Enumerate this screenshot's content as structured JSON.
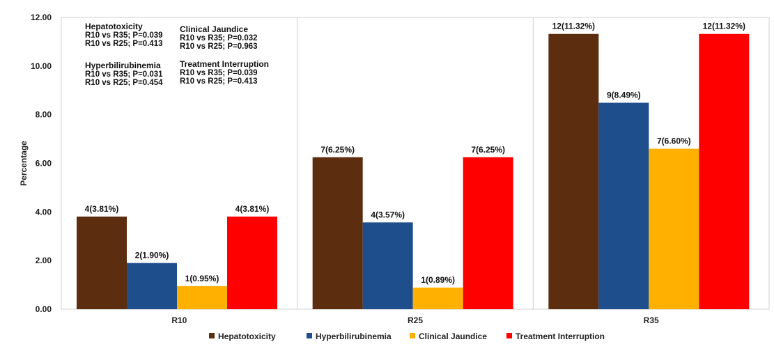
{
  "chart_data": {
    "type": "bar",
    "categories": [
      "R10",
      "R25",
      "R35"
    ],
    "ylabel": "Percentage",
    "xlabel": "",
    "ylim": [
      0,
      12
    ],
    "yticks": [
      "0.00",
      "2.00",
      "4.00",
      "6.00",
      "8.00",
      "10.00",
      "12.00"
    ],
    "grid": false,
    "legend_position": "bottom",
    "series": [
      {
        "name": "Hepatotoxicity",
        "color": "#5c2d0e",
        "values": [
          3.81,
          6.25,
          11.32
        ],
        "labels": [
          "4(3.81%)",
          "7(6.25%)",
          "12(11.32%)"
        ]
      },
      {
        "name": "Hyperbilirubinemia",
        "color": "#1f4e8c",
        "values": [
          1.9,
          3.57,
          8.49
        ],
        "labels": [
          "2(1.90%)",
          "4(3.57%)",
          "9(8.49%)"
        ]
      },
      {
        "name": "Clinical Jaundice",
        "color": "#ffb000",
        "values": [
          0.95,
          0.89,
          6.6
        ],
        "labels": [
          "1(0.95%)",
          "1(0.89%)",
          "7(6.60%)"
        ]
      },
      {
        "name": "Treatment Interruption",
        "color": "#ff0000",
        "values": [
          3.81,
          6.25,
          11.32
        ],
        "labels": [
          "4(3.81%)",
          "7(6.25%)",
          "12(11.32%)"
        ]
      }
    ],
    "annotations": [
      {
        "heading": "Hepatotoxicity",
        "lines": [
          "R10 vs R35; P=0.039",
          "R10 vs R25; P=0.413"
        ]
      },
      {
        "heading": "Clinical Jaundice",
        "lines": [
          "R10 vs R35; P=0.032",
          "R10 vs R25; P=0.963"
        ]
      },
      {
        "heading": "Hyperbilirubinemia",
        "lines": [
          "R10 vs R35; P=0.031",
          "R10 vs R25; P=0.454"
        ]
      },
      {
        "heading": "Treatment Interruption",
        "lines": [
          "R10 vs R35; P=0.039",
          "R10 vs R25; P=0.413"
        ]
      }
    ]
  }
}
